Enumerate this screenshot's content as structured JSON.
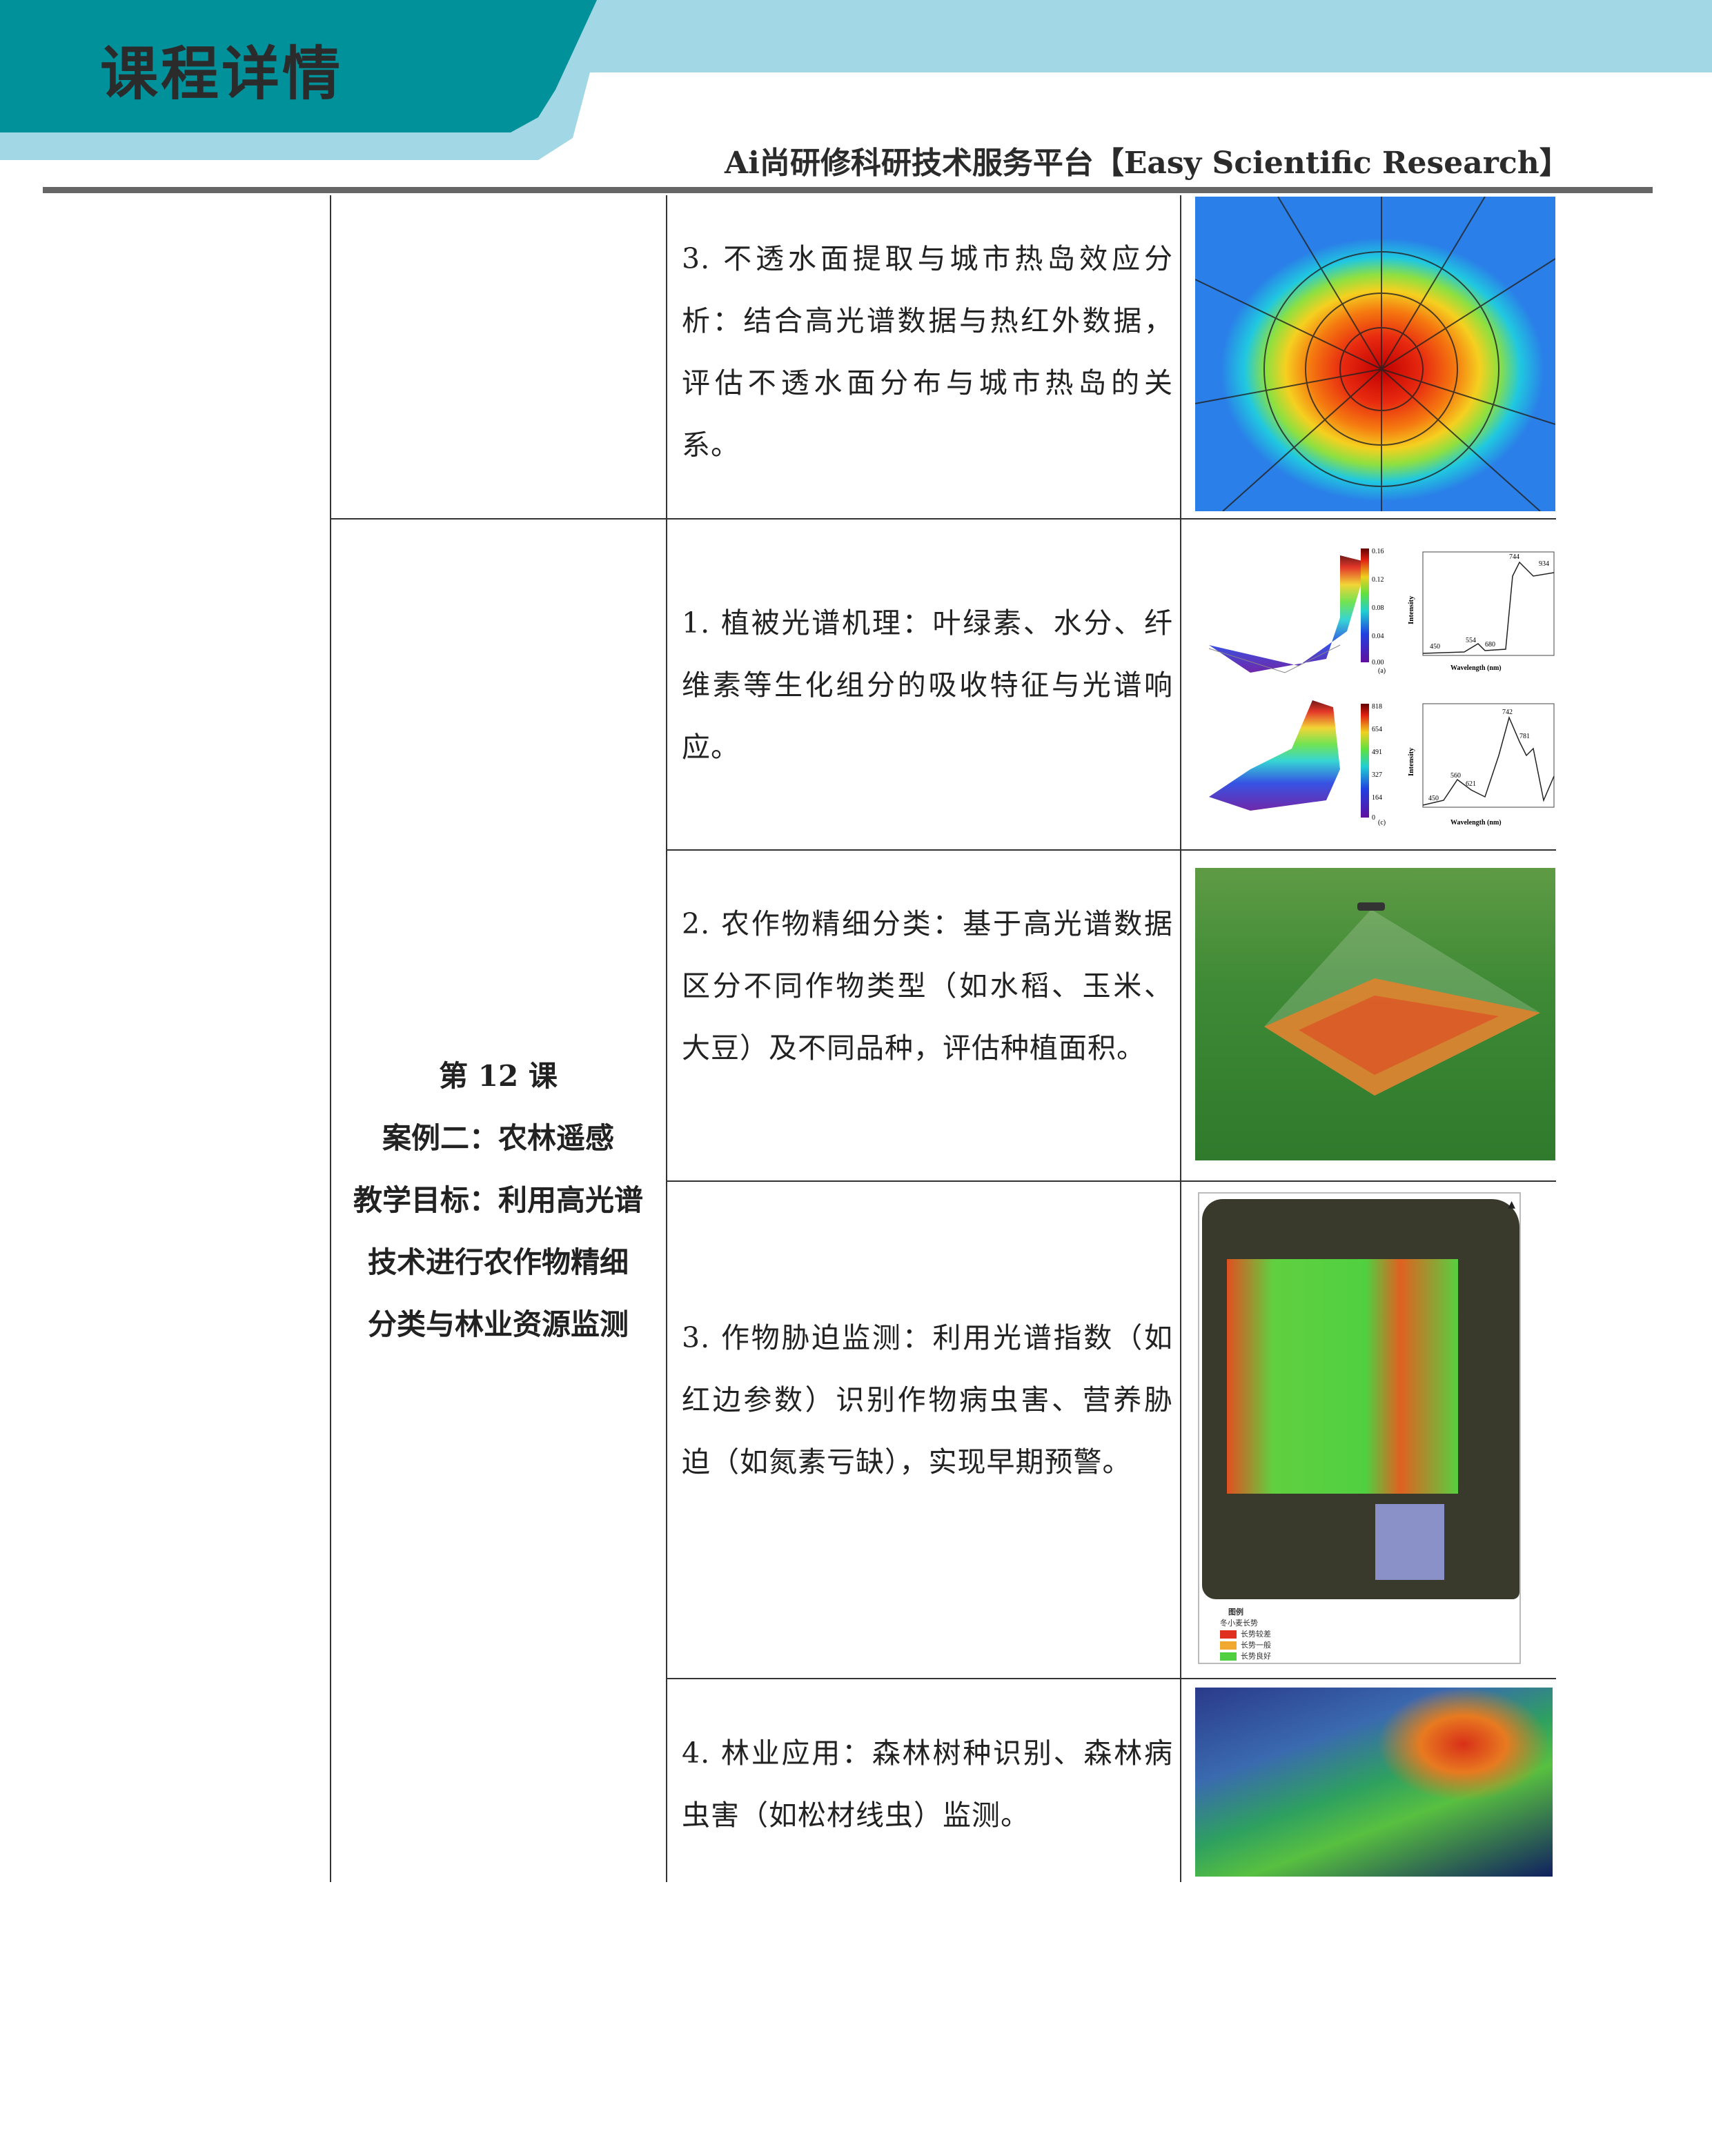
{
  "header": {
    "title": "课程详情",
    "subtitle": "Ai尚研修科研技术服务平台【Easy Scientific Research】",
    "colors": {
      "dark_teal": "#00919a",
      "light_blue": "#a2d8e5",
      "rule": "#666666"
    }
  },
  "table": {
    "lesson": {
      "number": "第 12 课",
      "case": "案例二：农林遥感",
      "objective_lines": [
        "教学目标：利用高光谱",
        "技术进行农作物精细",
        "分类与林业资源监测"
      ]
    },
    "rows": [
      {
        "text": "3. 不透水面提取与城市热岛效应分析：结合高光谱数据与热红外数据，评估不透水面分布与城市热岛的关系。",
        "image": "urban-heat-island-map"
      },
      {
        "text": "1. 植被光谱机理：叶绿素、水分、纤维素等生化组分的吸收特征与光谱响应。",
        "image": "vegetation-spectra-figure"
      },
      {
        "text": "2. 农作物精细分类：基于高光谱数据区分不同作物类型（如水稻、玉米、大豆）及不同品种，评估种植面积。",
        "image": "drone-crop-scan"
      },
      {
        "text": "3. 作物胁迫监测：利用光谱指数（如红边参数）识别作物病虫害、营养胁迫（如氮素亏缺），实现早期预警。",
        "image": "crop-growth-map"
      },
      {
        "text": "4. 林业应用：森林树种识别、森林病虫害（如松材线虫）监测。",
        "image": "forest-3d-map"
      }
    ]
  },
  "figures": {
    "spectra": {
      "panel_a": {
        "label": "(a)",
        "xlabel": "Wavelength (nm)",
        "ylabel": "Intensity",
        "peaks": [
          "450",
          "554",
          "680",
          "744",
          "934"
        ],
        "colorbar": [
          "0.16",
          "0.12",
          "0.08",
          "0.04",
          "0.00"
        ]
      },
      "panel_c": {
        "label": "(c)",
        "xlabel": "Wavelength (nm)",
        "ylabel": "Intensity",
        "peaks": [
          "450",
          "560",
          "621",
          "742",
          "781"
        ],
        "colorbar": [
          "818",
          "654",
          "491",
          "327",
          "164",
          "0"
        ]
      }
    },
    "crop_legend": {
      "title": "图例",
      "subtitle": "冬小麦长势",
      "items": [
        {
          "label": "长势较差",
          "color": "#e03020"
        },
        {
          "label": "长势一般",
          "color": "#f0a830"
        },
        {
          "label": "长势良好",
          "color": "#50d040"
        }
      ]
    }
  }
}
